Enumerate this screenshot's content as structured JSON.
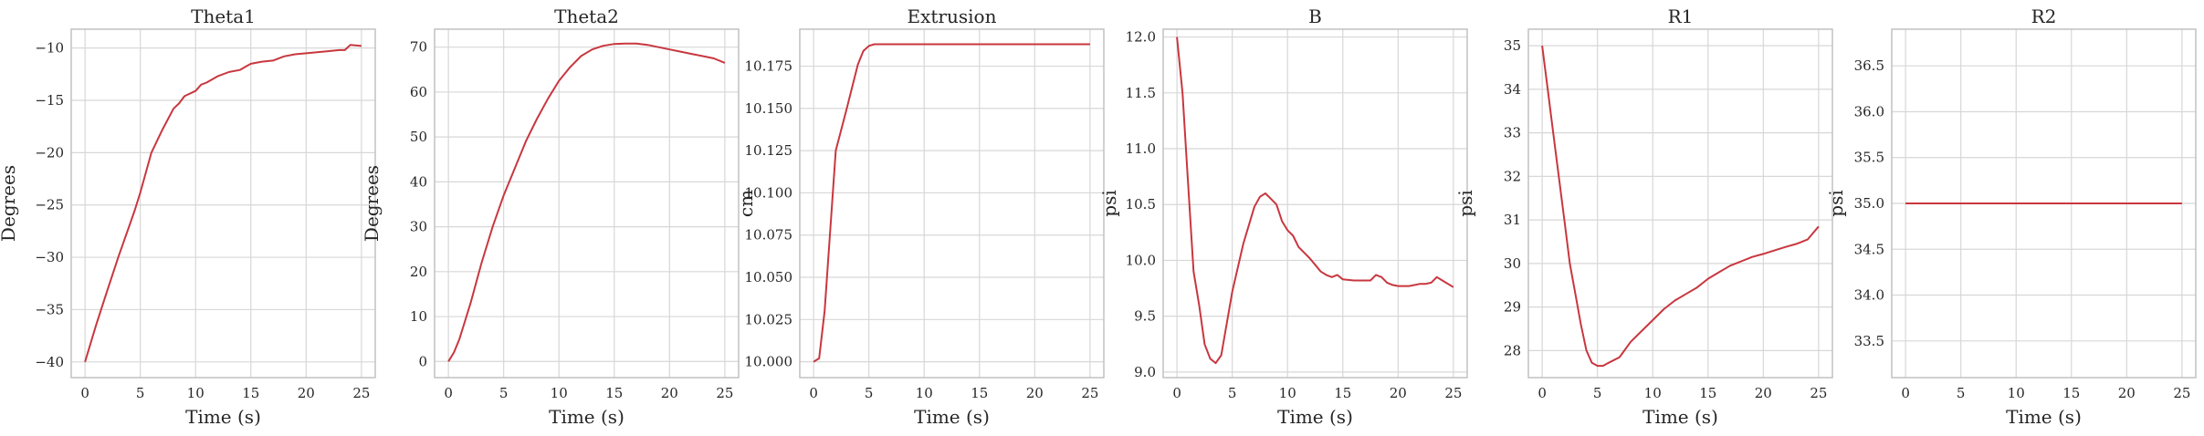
{
  "colors": {
    "line": "#c8373f",
    "grid": "#d7d7d7",
    "spine": "#bdbdbd",
    "text": "#262626"
  },
  "chart_data": [
    {
      "type": "line",
      "title": "Theta1",
      "xlabel": "Time (s)",
      "ylabel": "Degrees",
      "xlim": [
        -1.25,
        26.25
      ],
      "ylim": [
        -41.5,
        -8.2
      ],
      "xticks": [
        0,
        5,
        10,
        15,
        20,
        25
      ],
      "yticks": [
        -40,
        -35,
        -30,
        -25,
        -20,
        -15,
        -10
      ],
      "series": [
        {
          "x": [
            0,
            1,
            2,
            3,
            4,
            4.5,
            5,
            6,
            7,
            8,
            8.5,
            9,
            10,
            10.5,
            11,
            12,
            13,
            14,
            14.5,
            15,
            16,
            17,
            18,
            19,
            20,
            21,
            22,
            23,
            23.5,
            24,
            25
          ],
          "y": [
            -40,
            -36.5,
            -33.2,
            -30,
            -27,
            -25.5,
            -23.8,
            -20,
            -17.8,
            -15.8,
            -15.3,
            -14.6,
            -14.1,
            -13.5,
            -13.3,
            -12.7,
            -12.3,
            -12.1,
            -11.8,
            -11.5,
            -11.3,
            -11.2,
            -10.8,
            -10.6,
            -10.5,
            -10.4,
            -10.3,
            -10.2,
            -10.2,
            -9.7,
            -9.8
          ]
        }
      ]
    },
    {
      "type": "line",
      "title": "Theta2",
      "xlabel": "Time (s)",
      "ylabel": "Degrees",
      "xlim": [
        -1.25,
        26.25
      ],
      "ylim": [
        -3.6,
        74
      ],
      "xticks": [
        0,
        5,
        10,
        15,
        20,
        25
      ],
      "yticks": [
        0,
        10,
        20,
        30,
        40,
        50,
        60,
        70
      ],
      "series": [
        {
          "x": [
            0,
            0.5,
            1,
            2,
            3,
            4,
            5,
            6,
            7,
            8,
            9,
            10,
            11,
            12,
            13,
            14,
            15,
            16,
            17,
            18,
            19,
            20,
            21,
            22,
            23,
            24,
            25
          ],
          "y": [
            0,
            2,
            5,
            13,
            22,
            30,
            37,
            43,
            49,
            54,
            58.5,
            62.5,
            65.5,
            68,
            69.5,
            70.3,
            70.7,
            70.8,
            70.8,
            70.5,
            70,
            69.5,
            69,
            68.5,
            68,
            67.5,
            66.5
          ]
        }
      ]
    },
    {
      "type": "line",
      "title": "Extrusion",
      "xlabel": "Time (s)",
      "ylabel": "cm",
      "xlim": [
        -1.25,
        26.25
      ],
      "ylim": [
        9.9906,
        10.1969
      ],
      "xticks": [
        0,
        5,
        10,
        15,
        20,
        25
      ],
      "yticks": [
        10.0,
        10.025,
        10.05,
        10.075,
        10.1,
        10.125,
        10.15,
        10.175
      ],
      "series": [
        {
          "x": [
            0,
            0.5,
            1,
            2,
            3,
            4,
            4.5,
            5,
            5.5,
            6,
            10,
            15,
            20,
            25
          ],
          "y": [
            10,
            10.002,
            10.03,
            10.125,
            10.15,
            10.176,
            10.184,
            10.187,
            10.188,
            10.188,
            10.188,
            10.188,
            10.188,
            10.188
          ]
        }
      ]
    },
    {
      "type": "line",
      "title": "B",
      "xlabel": "Time (s)",
      "ylabel": "psi",
      "xlim": [
        -1.25,
        26.25
      ],
      "ylim": [
        8.95,
        12.07
      ],
      "xticks": [
        0,
        5,
        10,
        15,
        20,
        25
      ],
      "yticks": [
        9.0,
        9.5,
        10.0,
        10.5,
        11.0,
        11.5,
        12.0
      ],
      "series": [
        {
          "x": [
            0,
            0.5,
            1,
            1.5,
            2,
            2.5,
            3,
            3.5,
            4,
            5,
            6,
            7,
            7.5,
            8,
            8.5,
            9,
            9.5,
            10,
            10.5,
            11,
            11.5,
            12,
            12.5,
            13,
            13.5,
            14,
            14.5,
            15,
            16,
            17,
            17.5,
            18,
            18.5,
            19,
            19.5,
            20,
            21,
            22,
            22.5,
            23,
            23.5,
            24,
            25
          ],
          "y": [
            12,
            11.5,
            10.7,
            9.9,
            9.6,
            9.25,
            9.12,
            9.08,
            9.15,
            9.72,
            10.15,
            10.48,
            10.57,
            10.6,
            10.55,
            10.5,
            10.35,
            10.27,
            10.22,
            10.12,
            10.07,
            10.02,
            9.96,
            9.9,
            9.87,
            9.85,
            9.87,
            9.83,
            9.82,
            9.82,
            9.82,
            9.87,
            9.85,
            9.8,
            9.78,
            9.77,
            9.77,
            9.79,
            9.79,
            9.8,
            9.85,
            9.82,
            9.76
          ]
        }
      ]
    },
    {
      "type": "line",
      "title": "R1",
      "xlabel": "Time (s)",
      "ylabel": "psi",
      "xlim": [
        -1.25,
        26.25
      ],
      "ylim": [
        27.38,
        35.38
      ],
      "xticks": [
        0,
        5,
        10,
        15,
        20,
        25
      ],
      "yticks": [
        28,
        29,
        30,
        31,
        32,
        33,
        34,
        35
      ],
      "series": [
        {
          "x": [
            0,
            0.5,
            1,
            1.5,
            2,
            2.5,
            3,
            3.5,
            4,
            4.5,
            5,
            5.5,
            6,
            7,
            8,
            9,
            10,
            11,
            12,
            13,
            14,
            15,
            16,
            17,
            18,
            19,
            20,
            21,
            22,
            23,
            24,
            25
          ],
          "y": [
            35,
            34,
            33,
            32,
            31,
            30,
            29.3,
            28.6,
            28,
            27.72,
            27.65,
            27.65,
            27.72,
            27.85,
            28.2,
            28.45,
            28.7,
            28.95,
            29.15,
            29.3,
            29.45,
            29.65,
            29.8,
            29.95,
            30.05,
            30.15,
            30.22,
            30.3,
            30.38,
            30.45,
            30.55,
            30.85
          ]
        }
      ]
    },
    {
      "type": "line",
      "title": "R2",
      "xlabel": "Time (s)",
      "ylabel": "psi",
      "xlim": [
        -1.25,
        26.25
      ],
      "ylim": [
        33.1,
        36.9
      ],
      "xticks": [
        0,
        5,
        10,
        15,
        20,
        25
      ],
      "yticks": [
        33.5,
        34.0,
        34.5,
        35.0,
        35.5,
        36.0,
        36.5
      ],
      "series": [
        {
          "x": [
            0,
            25
          ],
          "y": [
            35,
            35
          ]
        }
      ]
    }
  ]
}
